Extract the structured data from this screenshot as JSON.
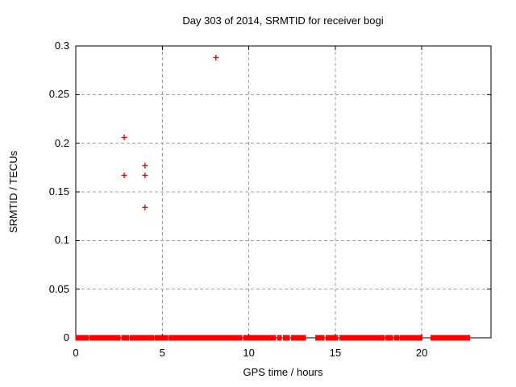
{
  "window": {
    "background": "#ffffff"
  },
  "chart_data": {
    "type": "scatter",
    "title": "Day 303 of 2014, SRMTID for receiver bogi",
    "xlabel": "GPS time / hours",
    "ylabel": "SRMTID / TECUs",
    "xlim": [
      0,
      24
    ],
    "ylim": [
      0,
      0.3
    ],
    "xticks": [
      0,
      5,
      10,
      15,
      20
    ],
    "xtick_labels": [
      "0",
      "5",
      "10",
      "15",
      "20"
    ],
    "yticks": [
      0,
      0.05,
      0.1,
      0.15,
      0.2,
      0.25,
      0.3
    ],
    "ytick_labels": [
      "0",
      "0.05",
      "0.1",
      "0.15",
      "0.2",
      "0.25",
      "0.3"
    ],
    "grid": true,
    "grid_style": "dashed",
    "legend": "none",
    "marker": "plus",
    "marker_color": "#ff0000",
    "grid_color": "#a0a0a0",
    "axis_color": "#000000",
    "points": [
      [
        2.8,
        0.167
      ],
      [
        2.8,
        0.206
      ],
      [
        4.0,
        0.134
      ],
      [
        4.0,
        0.167
      ],
      [
        4.0,
        0.177
      ],
      [
        8.1,
        0.288
      ]
    ],
    "baseline_value": 0,
    "baseline_segments": [
      [
        0.03,
        0.12
      ],
      [
        0.16,
        0.53
      ],
      [
        0.62,
        0.71
      ],
      [
        0.81,
        1.37
      ],
      [
        1.46,
        1.65
      ],
      [
        1.74,
        2.08
      ],
      [
        2.14,
        2.55
      ],
      [
        2.67,
        2.86
      ],
      [
        2.95,
        3.04
      ],
      [
        3.14,
        3.23
      ],
      [
        3.32,
        3.7
      ],
      [
        3.79,
        3.98
      ],
      [
        4.05,
        4.48
      ],
      [
        4.6,
        4.76
      ],
      [
        4.84,
        5.06
      ],
      [
        5.12,
        5.29
      ],
      [
        5.4,
        5.54
      ],
      [
        5.64,
        5.77
      ],
      [
        5.86,
        6.02
      ],
      [
        6.1,
        6.2
      ],
      [
        6.3,
        6.7
      ],
      [
        6.8,
        6.9
      ],
      [
        6.98,
        7.2
      ],
      [
        7.28,
        9.58
      ],
      [
        9.72,
        10.38
      ],
      [
        10.46,
        10.76
      ],
      [
        10.85,
        10.89
      ],
      [
        10.96,
        11.0
      ],
      [
        11.06,
        11.1
      ],
      [
        11.16,
        11.54
      ],
      [
        11.7,
        11.86
      ],
      [
        12.02,
        12.32
      ],
      [
        12.48,
        12.79
      ],
      [
        12.87,
        13.25
      ],
      [
        13.88,
        14.34
      ],
      [
        14.5,
        14.55
      ],
      [
        14.62,
        14.67
      ],
      [
        14.74,
        15.12
      ],
      [
        15.28,
        15.32
      ],
      [
        15.39,
        15.43
      ],
      [
        15.5,
        16.44
      ],
      [
        16.44,
        16.83
      ],
      [
        16.88,
        17.3
      ],
      [
        17.33,
        17.8
      ],
      [
        17.95,
        18.3
      ],
      [
        18.42,
        18.64
      ],
      [
        18.76,
        20.0
      ],
      [
        20.56,
        20.6
      ],
      [
        20.67,
        20.71
      ],
      [
        20.78,
        20.82
      ],
      [
        20.88,
        20.95
      ],
      [
        21.02,
        21.28
      ],
      [
        21.36,
        21.72
      ],
      [
        21.8,
        22.74
      ]
    ]
  }
}
